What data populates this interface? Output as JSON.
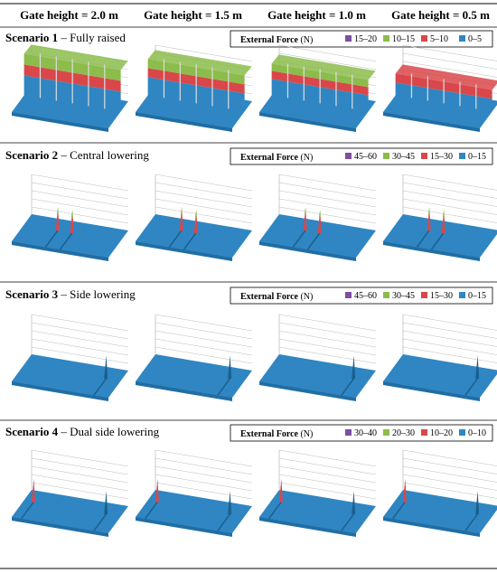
{
  "header": {
    "columns": [
      "Gate height = 2.0 m",
      "Gate height = 1.5 m",
      "Gate height = 1.0 m",
      "Gate height = 0.5 m"
    ]
  },
  "scenarios": [
    {
      "number": "Scenario 1",
      "description": "– Fully raised",
      "legend_title": "External Force",
      "legend_unit": "(N)",
      "legend": [
        {
          "label": "15–20",
          "color": "#7f4ea3"
        },
        {
          "label": "10–15",
          "color": "#8cbc4c"
        },
        {
          "label": "5–10",
          "color": "#d9474a"
        },
        {
          "label": "0–5",
          "color": "#2f86c2"
        }
      ]
    },
    {
      "number": "Scenario 2",
      "description": "– Central lowering",
      "legend_title": "External Force",
      "legend_unit": "(N)",
      "legend": [
        {
          "label": "45–60",
          "color": "#7f4ea3"
        },
        {
          "label": "30–45",
          "color": "#8cbc4c"
        },
        {
          "label": "15–30",
          "color": "#d9474a"
        },
        {
          "label": "0–15",
          "color": "#2f86c2"
        }
      ]
    },
    {
      "number": "Scenario 3",
      "description": "– Side lowering",
      "legend_title": "External Force",
      "legend_unit": "(N)",
      "legend": [
        {
          "label": "45–60",
          "color": "#7f4ea3"
        },
        {
          "label": "30–45",
          "color": "#8cbc4c"
        },
        {
          "label": "15–30",
          "color": "#d9474a"
        },
        {
          "label": "0–15",
          "color": "#2f86c2"
        }
      ]
    },
    {
      "number": "Scenario 4",
      "description": "– Dual side lowering",
      "legend_title": "External Force",
      "legend_unit": "(N)",
      "legend": [
        {
          "label": "30–40",
          "color": "#7f4ea3"
        },
        {
          "label": "20–30",
          "color": "#8cbc4c"
        },
        {
          "label": "10–20",
          "color": "#d9474a"
        },
        {
          "label": "0–10",
          "color": "#2f86c2"
        }
      ]
    }
  ]
}
